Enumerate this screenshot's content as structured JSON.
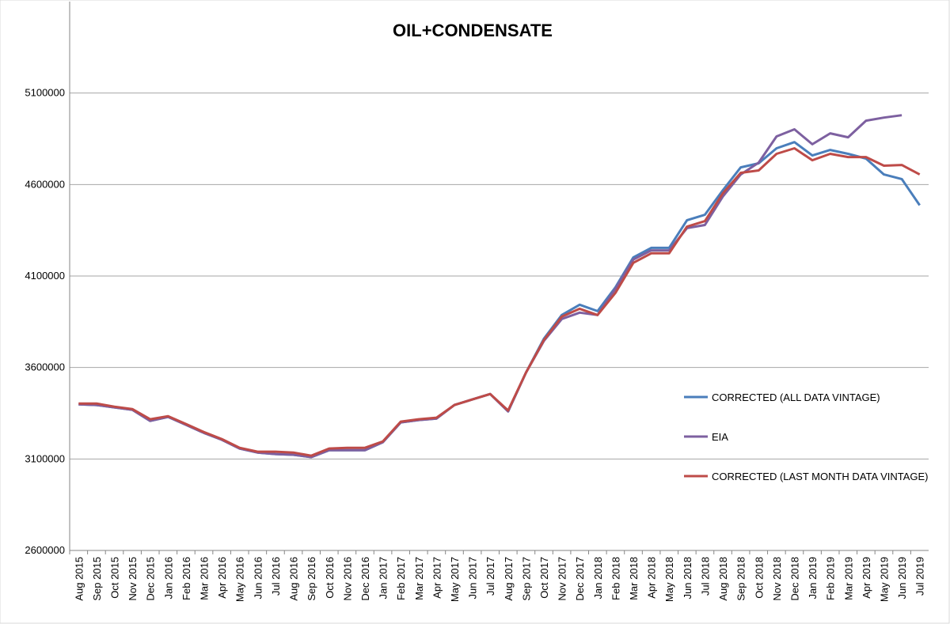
{
  "chart_data": {
    "type": "line",
    "title": "OIL+CONDENSATE",
    "categories": [
      "Aug 2015",
      "Sep 2015",
      "Oct 2015",
      "Nov 2015",
      "Dec 2015",
      "Jan 2016",
      "Feb 2016",
      "Mar 2016",
      "Apr 2016",
      "May 2016",
      "Jun 2016",
      "Jul 2016",
      "Aug 2016",
      "Sep 2016",
      "Oct 2016",
      "Nov 2016",
      "Dec 2016",
      "Jan 2017",
      "Feb 2017",
      "Mar 2017",
      "Apr 2017",
      "May 2017",
      "Jun 2017",
      "Jul 2017",
      "Aug 2017",
      "Sep 2017",
      "Oct 2017",
      "Nov 2017",
      "Dec 2017",
      "Jan 2018",
      "Feb 2018",
      "Mar 2018",
      "Apr 2018",
      "May 2018",
      "Jun 2018",
      "Jul 2018",
      "Aug 2018",
      "Sep 2018",
      "Oct 2018",
      "Nov 2018",
      "Dec 2018",
      "Jan 2019",
      "Feb 2019",
      "Mar 2019",
      "Apr 2019",
      "May 2019",
      "Jun 2019",
      "Jul 2019"
    ],
    "series": [
      {
        "name": "CORRECTED (ALL DATA VINTAGE)",
        "color": "#4a7ebb",
        "values": [
          3399000,
          3395000,
          3382000,
          3369000,
          3308000,
          3330000,
          3287000,
          3243000,
          3205000,
          3157000,
          3135000,
          3127000,
          3123000,
          3110000,
          3148000,
          3148000,
          3148000,
          3192000,
          3300000,
          3313000,
          3321000,
          3395000,
          3425000,
          3455000,
          3360000,
          3572000,
          3757000,
          3887000,
          3943000,
          3908000,
          4038000,
          4202000,
          4254000,
          4254000,
          4405000,
          4435000,
          4569000,
          4694000,
          4716000,
          4798000,
          4832000,
          4759000,
          4789000,
          4768000,
          4742000,
          4655000,
          4630000,
          4487000
        ]
      },
      {
        "name": "EIA",
        "color": "#7d60a0",
        "values": [
          3399000,
          3395000,
          3382000,
          3369000,
          3308000,
          3330000,
          3287000,
          3243000,
          3205000,
          3157000,
          3135000,
          3127000,
          3123000,
          3110000,
          3148000,
          3148000,
          3148000,
          3192000,
          3300000,
          3313000,
          3321000,
          3395000,
          3425000,
          3455000,
          3360000,
          3572000,
          3745000,
          3865000,
          3900000,
          3887000,
          4030000,
          4190000,
          4240000,
          4240000,
          4362000,
          4379000,
          4535000,
          4655000,
          4720000,
          4863000,
          4902000,
          4820000,
          4880000,
          4858000,
          4949000,
          4966000,
          4979000,
          null
        ]
      },
      {
        "name": "CORRECTED (LAST MONTH DATA VINTAGE)",
        "color": "#be4b48",
        "values": [
          3403000,
          3403000,
          3386000,
          3373000,
          3317000,
          3334000,
          3291000,
          3247000,
          3209000,
          3161000,
          3140000,
          3140000,
          3135000,
          3118000,
          3157000,
          3161000,
          3161000,
          3196000,
          3304000,
          3317000,
          3326000,
          3395000,
          3425000,
          3455000,
          3365000,
          3572000,
          3750000,
          3878000,
          3921000,
          3887000,
          4008000,
          4172000,
          4224000,
          4224000,
          4370000,
          4400000,
          4552000,
          4664000,
          4677000,
          4768000,
          4798000,
          4733000,
          4768000,
          4750000,
          4750000,
          4703000,
          4707000,
          4655000
        ]
      }
    ],
    "ylim": [
      2600000,
      5600000
    ],
    "yticks": [
      2600000,
      3100000,
      3600000,
      4100000,
      4600000,
      5100000
    ],
    "grid": true
  }
}
